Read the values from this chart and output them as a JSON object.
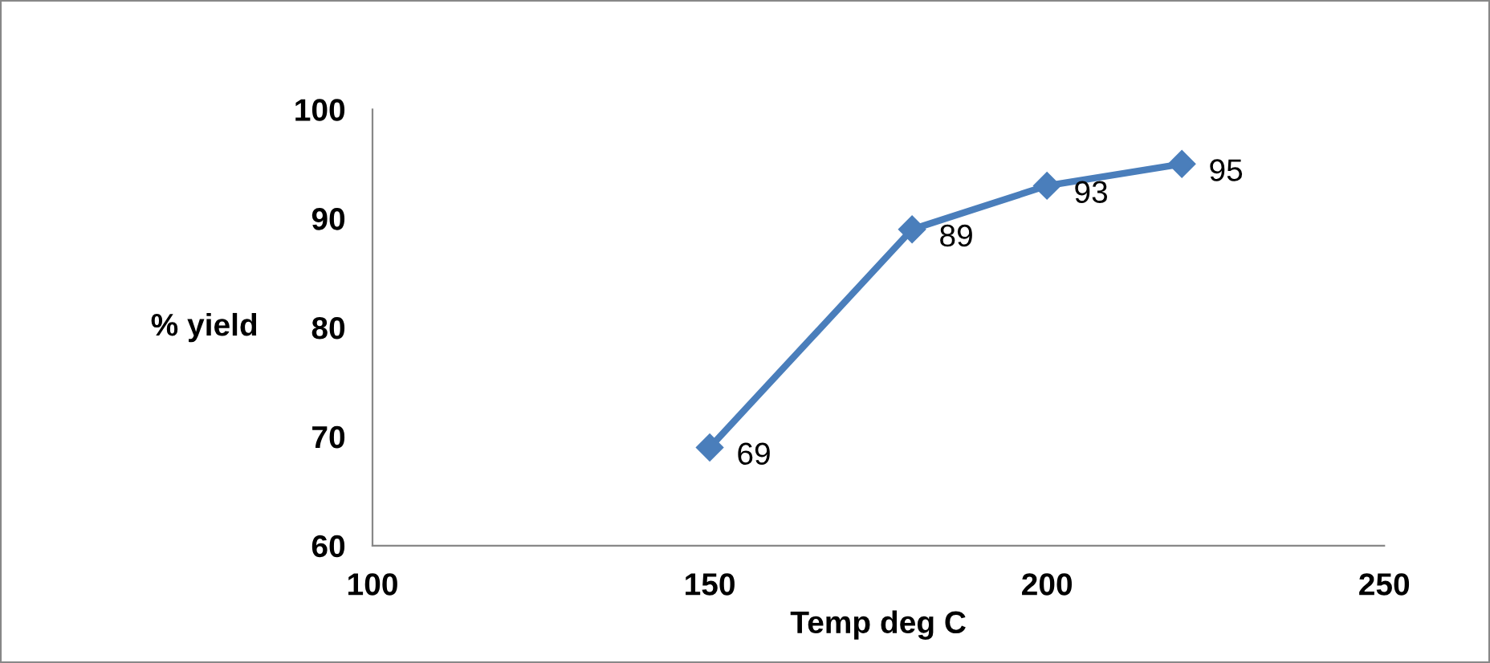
{
  "chart_data": {
    "type": "line",
    "xlabel": "Temp deg C",
    "ylabel": "% yield",
    "x": [
      150,
      180,
      200,
      220
    ],
    "series": [
      {
        "color": "#4a7ebb",
        "values": [
          69,
          89,
          93,
          95
        ]
      }
    ],
    "xlim": [
      100,
      250
    ],
    "xticks": [
      100,
      150,
      200,
      250
    ],
    "ylim": [
      60,
      100
    ],
    "yticks": [
      60,
      70,
      80,
      90,
      100
    ],
    "marker": "diamond",
    "line_style": "solid",
    "data_labels": true,
    "grid": false,
    "legend": false
  }
}
